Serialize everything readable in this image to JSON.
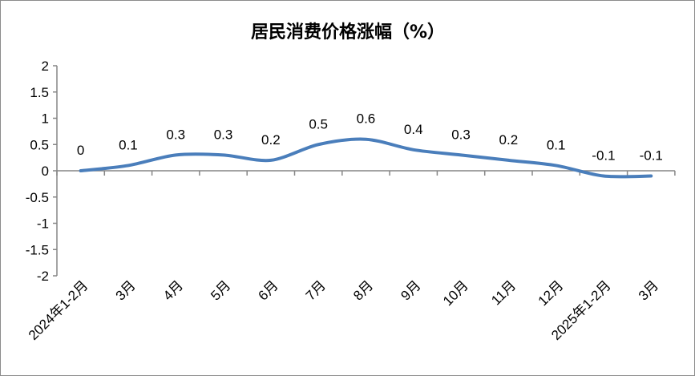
{
  "chart_data": {
    "type": "line",
    "title": "居民消费价格涨幅（%）",
    "xlabel": "",
    "ylabel": "",
    "categories": [
      "2024年1-2月",
      "3月",
      "4月",
      "5月",
      "6月",
      "7月",
      "8月",
      "9月",
      "10月",
      "11月",
      "12月",
      "2025年1-2月",
      "3月"
    ],
    "series": [
      {
        "values": [
          0,
          0.1,
          0.3,
          0.3,
          0.2,
          0.5,
          0.6,
          0.4,
          0.3,
          0.2,
          0.1,
          -0.1,
          -0.1
        ]
      }
    ],
    "data_labels": [
      "0",
      "0.1",
      "0.3",
      "0.3",
      "0.2",
      "0.5",
      "0.6",
      "0.4",
      "0.3",
      "0.2",
      "0.1",
      "-0.1",
      "-0.1"
    ],
    "ylim": [
      -2,
      2
    ],
    "yticks": [
      "2",
      "1.5",
      "1",
      "0.5",
      "0",
      "-0.5",
      "-1",
      "-1.5",
      "-2"
    ],
    "grid": false,
    "legend": "none",
    "line_color": "#4a7ebb",
    "axis_color": "#868686"
  }
}
